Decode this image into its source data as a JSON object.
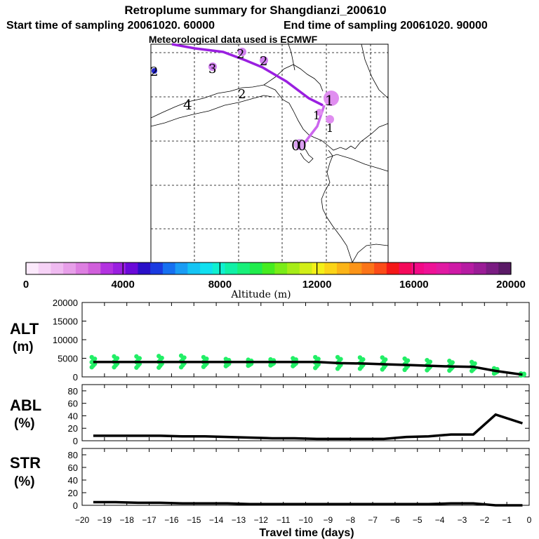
{
  "header": {
    "title": "Retroplume summary for Shangdianzi_200610",
    "start": "Start time of sampling 20061020. 60000",
    "end": "End time of sampling 20061020. 90000",
    "met": "Meteorological data used is ECMWF"
  },
  "colors": {
    "track_main": "#9a1fe0",
    "track_recent": "#cc66ee",
    "points": "#22ee66",
    "line": "#000000",
    "dot": "#2222cc",
    "labels": "#d889ee"
  },
  "chart_data": [
    {
      "type": "map",
      "name": "retroplume-map",
      "track_labels": [
        "2",
        "2",
        "2",
        "3",
        "2",
        "4",
        "1",
        "1",
        "1",
        "0",
        "0"
      ],
      "track_note": "plume centroid track from day 0 (release) back toward northwest"
    },
    {
      "type": "colorbar",
      "name": "altitude-colorbar",
      "title": "Altitude (m)",
      "ticks": [
        0,
        4000,
        8000,
        12000,
        16000,
        20000
      ],
      "range": [
        0,
        20000
      ],
      "colors": [
        "#fbe9fb",
        "#f6d2f6",
        "#efbaf0",
        "#e79fe9",
        "#dd7fe1",
        "#d05fdb",
        "#b332e0",
        "#9a1fe0",
        "#6a0ad8",
        "#2a10c8",
        "#1a3ae0",
        "#1670f0",
        "#1a9cf4",
        "#15c4f4",
        "#10e0f0",
        "#10f0d0",
        "#10f0a6",
        "#18f07a",
        "#20ec4c",
        "#46ec20",
        "#7aec18",
        "#a6ec18",
        "#d2ee18",
        "#f4f018",
        "#fbd418",
        "#fbb418",
        "#fb9418",
        "#fb7418",
        "#fb4c18",
        "#f41818",
        "#f40a5a",
        "#f20a86",
        "#ee1296",
        "#e01aa2",
        "#ce1aa6",
        "#b61ca2",
        "#9a1c96",
        "#7a1c82",
        "#5a1a66"
      ]
    },
    {
      "type": "scatter+line",
      "name": "alt-chart",
      "ylabel": "ALT (m)",
      "ylim": [
        0,
        20000
      ],
      "yticks": [
        0,
        5000,
        10000,
        15000,
        20000
      ],
      "x": [
        -19.5,
        -18.5,
        -17.5,
        -16.5,
        -15.5,
        -14.5,
        -13.5,
        -12.5,
        -11.5,
        -10.5,
        -9.5,
        -8.5,
        -7.5,
        -6.5,
        -5.5,
        -4.5,
        -3.5,
        -2.5,
        -1.5,
        -0.3
      ],
      "mean_altitude": [
        4000,
        4000,
        4000,
        4000,
        4000,
        4000,
        4000,
        4000,
        4000,
        4000,
        4000,
        3700,
        3600,
        3400,
        3200,
        3000,
        2800,
        2700,
        1600,
        600
      ],
      "scatter_range": [
        [
          2600,
          5300
        ],
        [
          2600,
          5500
        ],
        [
          2500,
          5500
        ],
        [
          2500,
          5600
        ],
        [
          2600,
          5700
        ],
        [
          2700,
          5300
        ],
        [
          2900,
          4800
        ],
        [
          3000,
          4600
        ],
        [
          3100,
          4700
        ],
        [
          2900,
          5000
        ],
        [
          2400,
          5300
        ],
        [
          2200,
          5300
        ],
        [
          2200,
          5200
        ],
        [
          2000,
          5200
        ],
        [
          1900,
          4900
        ],
        [
          1800,
          4500
        ],
        [
          1700,
          4300
        ],
        [
          1600,
          4000
        ],
        [
          900,
          2300
        ],
        [
          400,
          900
        ]
      ]
    },
    {
      "type": "line",
      "name": "abl-chart",
      "ylabel": "ABL (%)",
      "ylim": [
        0,
        90
      ],
      "yticks": [
        0,
        20,
        40,
        60,
        80
      ],
      "x": [
        -19.5,
        -18.5,
        -17.5,
        -16.5,
        -15.5,
        -14.5,
        -13.5,
        -12.5,
        -11.5,
        -10.5,
        -9.5,
        -8.5,
        -7.5,
        -6.5,
        -5.5,
        -4.5,
        -3.5,
        -2.5,
        -1.5,
        -0.3
      ],
      "values": [
        8,
        8,
        8,
        8,
        7,
        7,
        6,
        5,
        4,
        4,
        3,
        3,
        3,
        3,
        6,
        7,
        10,
        10,
        42,
        28
      ]
    },
    {
      "type": "line",
      "name": "str-chart",
      "ylabel": "STR (%)",
      "ylim": [
        0,
        90
      ],
      "yticks": [
        0,
        20,
        40,
        60,
        80
      ],
      "x": [
        -19.5,
        -18.5,
        -17.5,
        -16.5,
        -15.5,
        -14.5,
        -13.5,
        -12.5,
        -11.5,
        -10.5,
        -9.5,
        -8.5,
        -7.5,
        -6.5,
        -5.5,
        -4.5,
        -3.5,
        -2.5,
        -1.5,
        -0.3
      ],
      "values": [
        5,
        5,
        4,
        4,
        3,
        3,
        3,
        2,
        2,
        2,
        2,
        2,
        2,
        2,
        2,
        2,
        3,
        3,
        0,
        0
      ],
      "xlabel": "Travel time (days)",
      "xlim": [
        -20,
        0
      ],
      "xticks": [
        -20,
        -19,
        -18,
        -17,
        -16,
        -15,
        -14,
        -13,
        -12,
        -11,
        -10,
        -9,
        -8,
        -7,
        -6,
        -5,
        -4,
        -3,
        -2,
        -1,
        0
      ]
    }
  ]
}
